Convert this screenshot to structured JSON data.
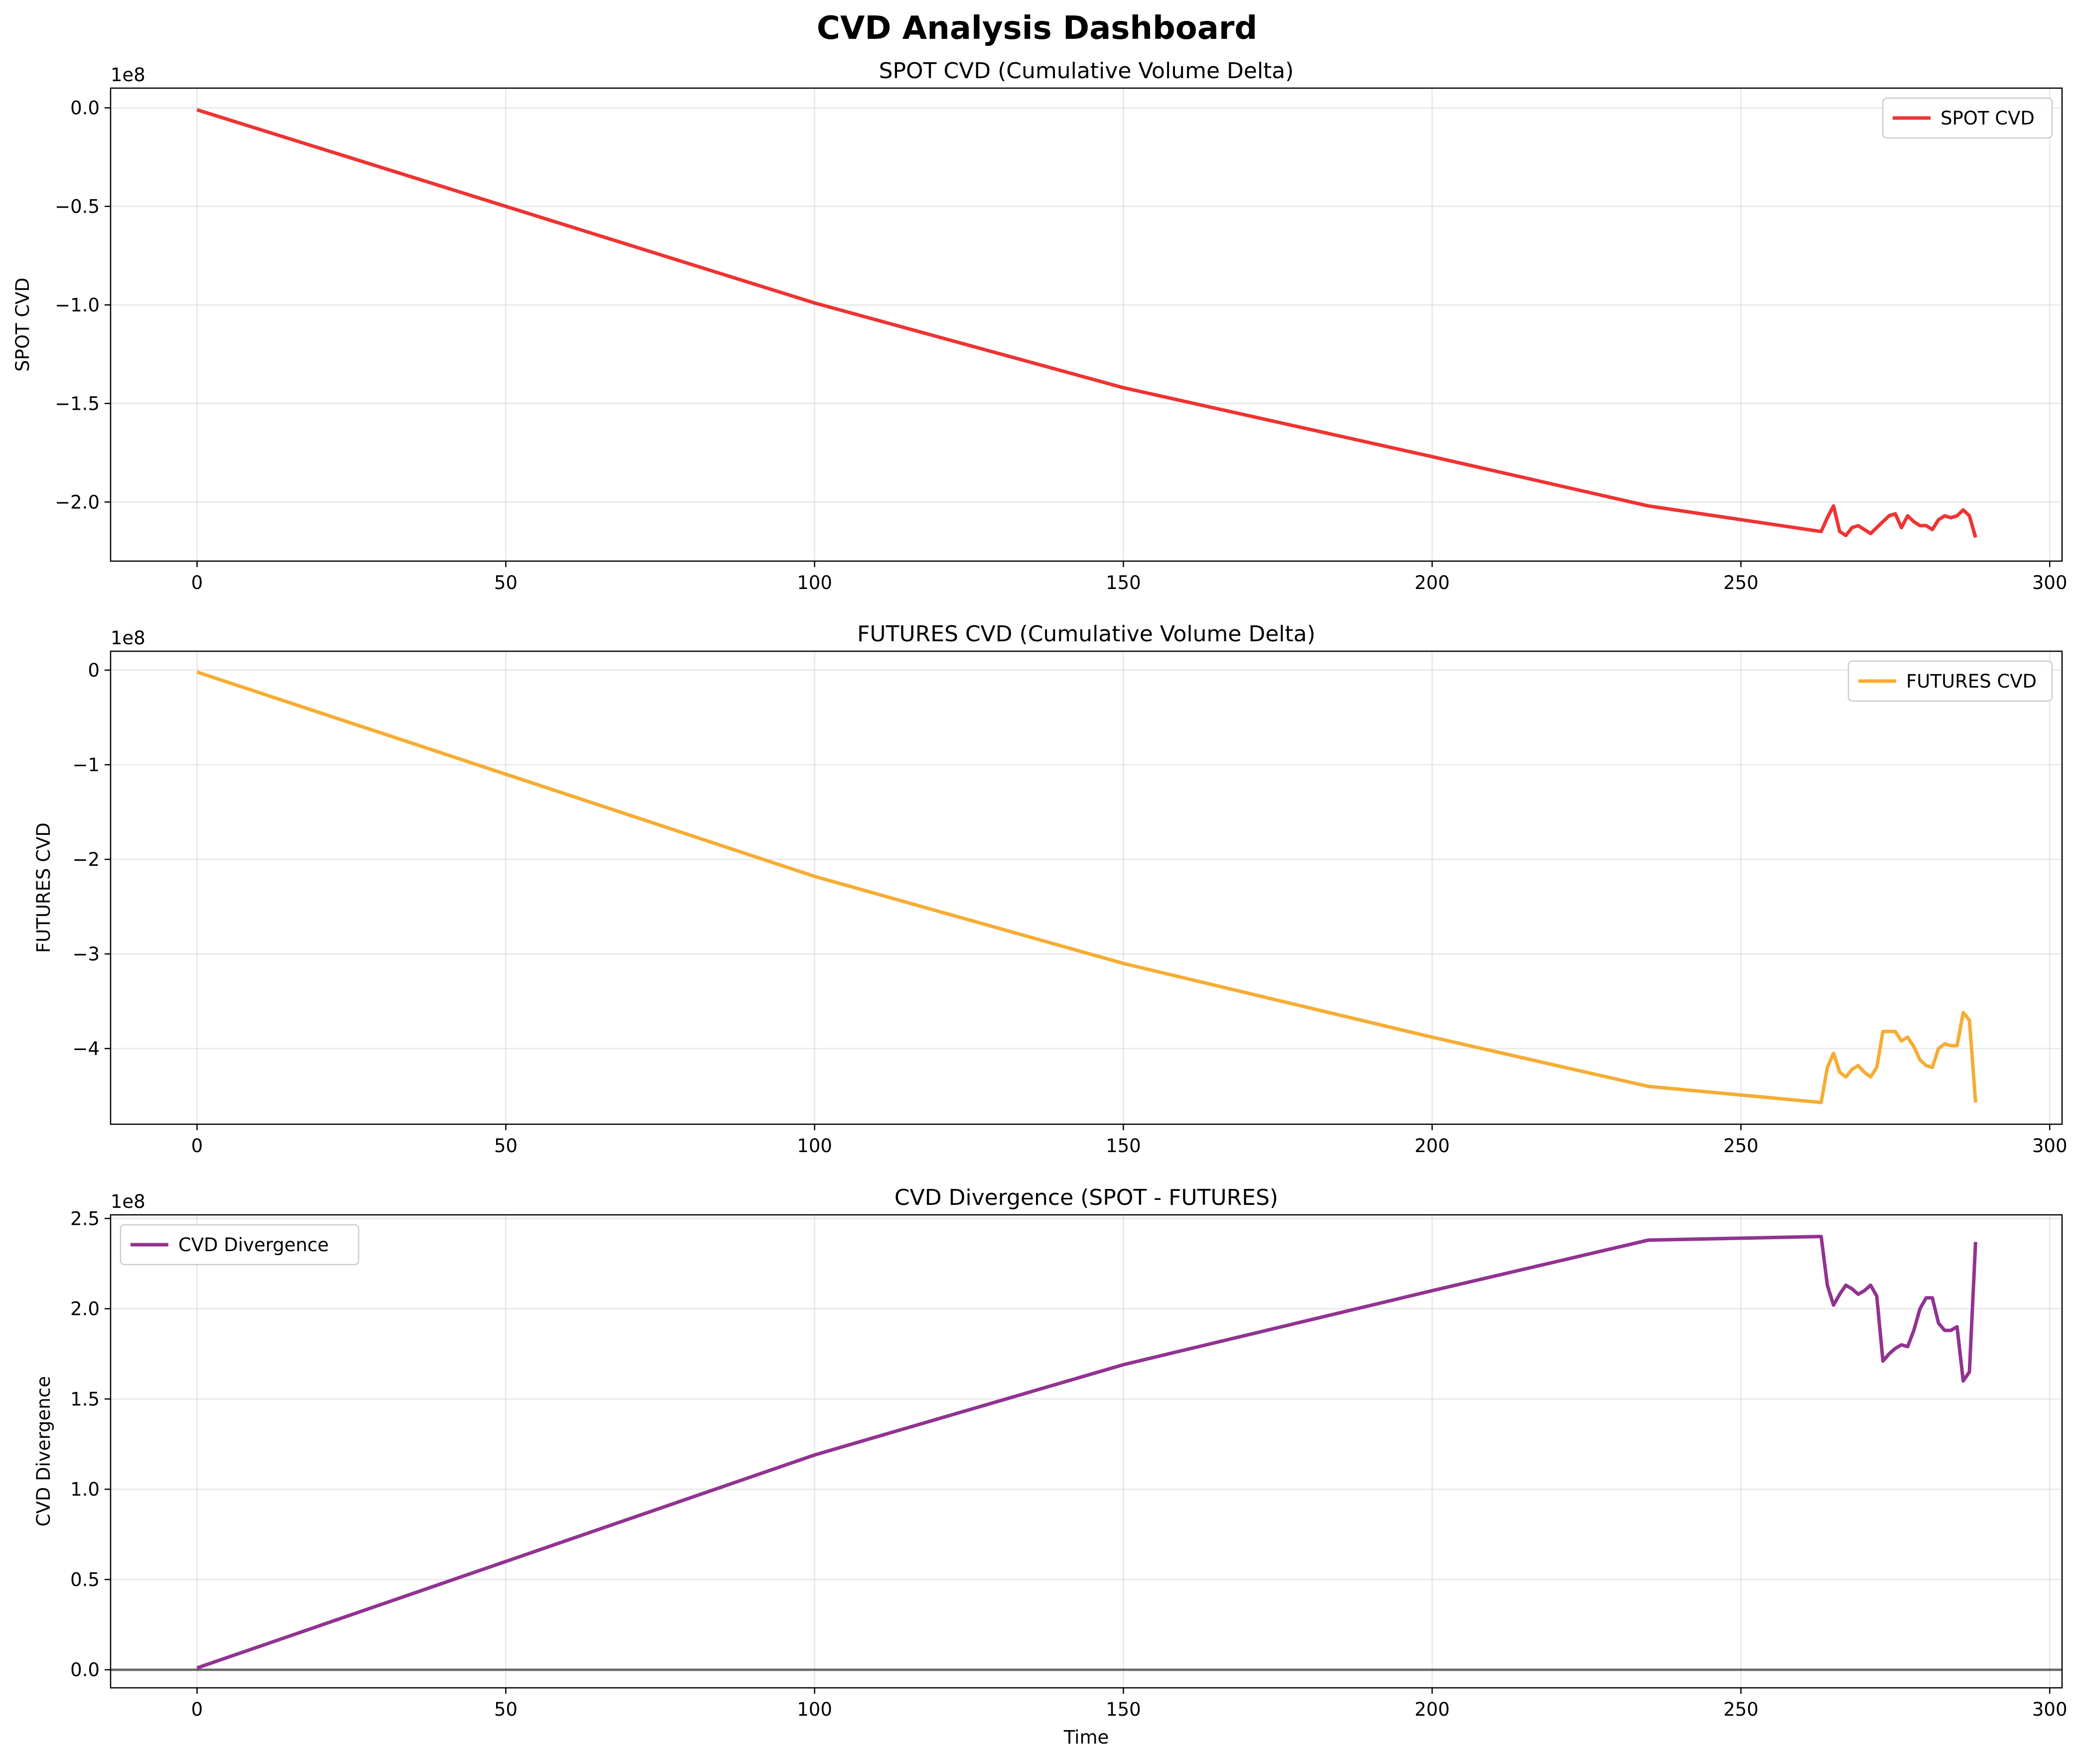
{
  "title": "CVD Analysis Dashboard",
  "chart_data": [
    {
      "type": "line",
      "title": "SPOT CVD (Cumulative Volume Delta)",
      "xlabel": "",
      "ylabel": "SPOT CVD",
      "y_offset_label": "1e8",
      "xlim": [
        -14,
        302
      ],
      "ylim": [
        -2.3,
        0.1
      ],
      "xticks": [
        0,
        50,
        100,
        150,
        200,
        250,
        300
      ],
      "yticks": [
        0.0,
        -0.5,
        -1.0,
        -1.5,
        -2.0
      ],
      "ytick_labels": [
        "0.0",
        "−0.5",
        "−1.0",
        "−1.5",
        "−2.0"
      ],
      "grid": true,
      "legend_position": "upper right",
      "series": [
        {
          "name": "SPOT CVD",
          "color": "#ee2222",
          "x": [
            0,
            50,
            100,
            150,
            200,
            235,
            263,
            264,
            265,
            266,
            267,
            268,
            269,
            270,
            271,
            272,
            273,
            274,
            275,
            276,
            277,
            278,
            279,
            280,
            281,
            282,
            283,
            284,
            285,
            286,
            287,
            288
          ],
          "y": [
            -0.01,
            -0.5,
            -0.99,
            -1.42,
            -1.77,
            -2.02,
            -2.15,
            -2.08,
            -2.02,
            -2.15,
            -2.17,
            -2.13,
            -2.12,
            -2.14,
            -2.16,
            -2.13,
            -2.1,
            -2.07,
            -2.06,
            -2.13,
            -2.07,
            -2.1,
            -2.12,
            -2.12,
            -2.14,
            -2.09,
            -2.07,
            -2.08,
            -2.07,
            -2.04,
            -2.07,
            -2.18
          ]
        }
      ]
    },
    {
      "type": "line",
      "title": "FUTURES CVD (Cumulative Volume Delta)",
      "xlabel": "",
      "ylabel": "FUTURES CVD",
      "y_offset_label": "1e8",
      "xlim": [
        -14,
        302
      ],
      "ylim": [
        -4.8,
        0.2
      ],
      "xticks": [
        0,
        50,
        100,
        150,
        200,
        250,
        300
      ],
      "yticks": [
        0,
        -1,
        -2,
        -3,
        -4
      ],
      "ytick_labels": [
        "0",
        "−1",
        "−2",
        "−3",
        "−4"
      ],
      "grid": true,
      "legend_position": "upper right",
      "series": [
        {
          "name": "FUTURES CVD",
          "color": "#f5a623",
          "x": [
            0,
            50,
            100,
            150,
            200,
            235,
            263,
            264,
            265,
            266,
            267,
            268,
            269,
            270,
            271,
            272,
            273,
            274,
            275,
            276,
            277,
            278,
            279,
            280,
            281,
            282,
            283,
            284,
            285,
            286,
            287,
            288
          ],
          "y": [
            -0.02,
            -1.1,
            -2.18,
            -3.1,
            -3.88,
            -4.4,
            -4.57,
            -4.2,
            -4.05,
            -4.25,
            -4.3,
            -4.22,
            -4.18,
            -4.25,
            -4.3,
            -4.2,
            -3.82,
            -3.82,
            -3.82,
            -3.92,
            -3.88,
            -3.98,
            -4.12,
            -4.18,
            -4.2,
            -4.0,
            -3.95,
            -3.97,
            -3.97,
            -3.62,
            -3.7,
            -4.57
          ]
        }
      ]
    },
    {
      "type": "line",
      "title": "CVD Divergence (SPOT - FUTURES)",
      "xlabel": "Time",
      "ylabel": "CVD Divergence",
      "y_offset_label": "1e8",
      "xlim": [
        -14,
        302
      ],
      "ylim": [
        -0.1,
        2.52
      ],
      "xticks": [
        0,
        50,
        100,
        150,
        200,
        250,
        300
      ],
      "yticks": [
        0.0,
        0.5,
        1.0,
        1.5,
        2.0,
        2.5
      ],
      "ytick_labels": [
        "0.0",
        "0.5",
        "1.0",
        "1.5",
        "2.0",
        "2.5"
      ],
      "grid": true,
      "legend_position": "upper left",
      "reference_line_y": 0,
      "series": [
        {
          "name": "CVD Divergence",
          "color": "#882288",
          "x": [
            0,
            50,
            100,
            150,
            200,
            235,
            263,
            264,
            265,
            266,
            267,
            268,
            269,
            270,
            271,
            272,
            273,
            274,
            275,
            276,
            277,
            278,
            279,
            280,
            281,
            282,
            283,
            284,
            285,
            286,
            287,
            288
          ],
          "y": [
            0.01,
            0.6,
            1.19,
            1.69,
            2.1,
            2.38,
            2.4,
            2.13,
            2.02,
            2.08,
            2.13,
            2.11,
            2.08,
            2.1,
            2.13,
            2.07,
            1.71,
            1.75,
            1.78,
            1.8,
            1.79,
            1.88,
            2.0,
            2.06,
            2.06,
            1.92,
            1.88,
            1.88,
            1.9,
            1.6,
            1.65,
            2.37
          ]
        }
      ]
    }
  ]
}
